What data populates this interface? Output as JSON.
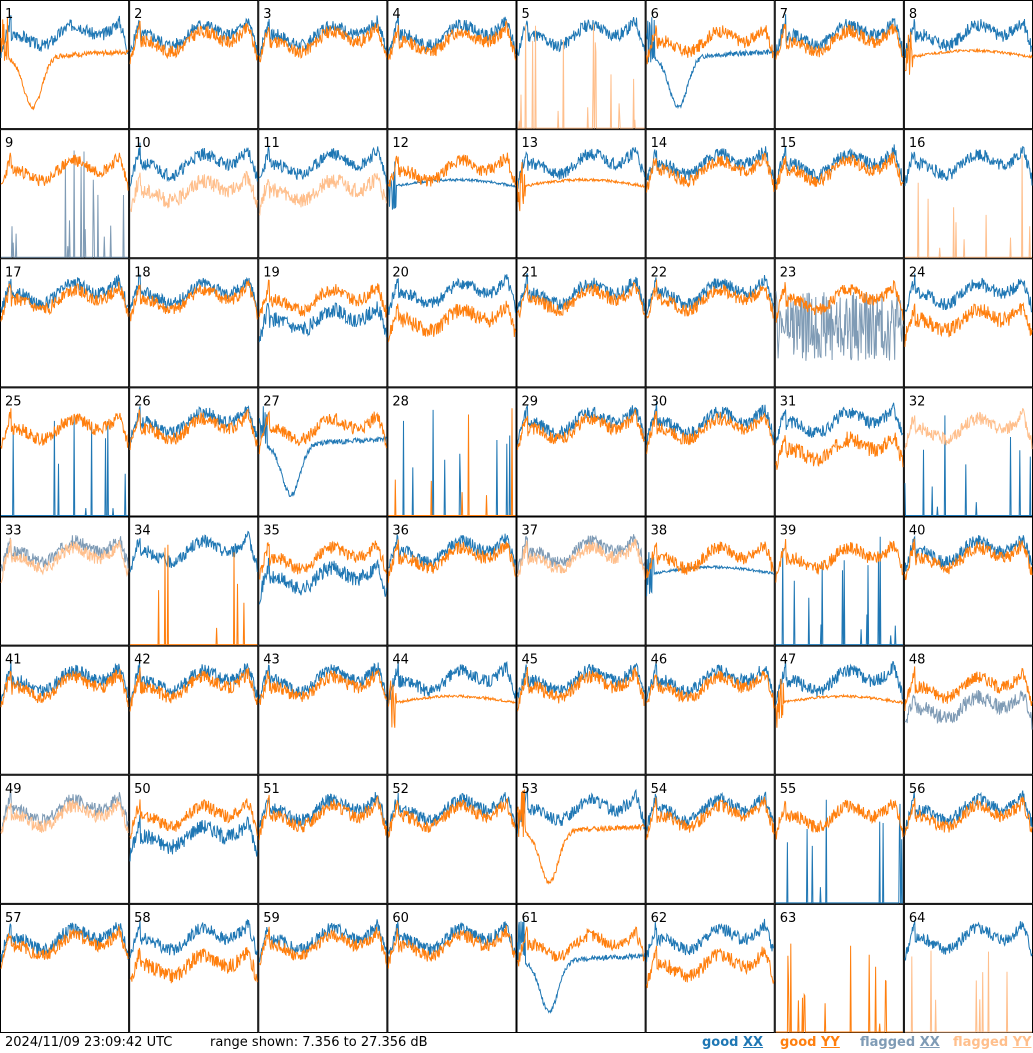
{
  "footer": {
    "timestamp": "2024/11/09 23:09:42 UTC",
    "range_text": "range shown: 7.356 to 27.356 dB",
    "legend": {
      "good_xx": {
        "word": "good",
        "pol": "XX",
        "color": "#1f77b4"
      },
      "good_yy": {
        "word": "good",
        "pol": "YY",
        "color": "#ff7f0e"
      },
      "flagged_xx": {
        "word": "flagged",
        "pol": "XX",
        "color": "#7f9bb5"
      },
      "flagged_yy": {
        "word": "flagged",
        "pol": "YY",
        "color": "#ffbf8c"
      }
    }
  },
  "chart_data": {
    "type": "line",
    "layout": "8x8 small multiples",
    "range_db": [
      7.356,
      27.356
    ],
    "colors": {
      "good_xx": "#1f77b4",
      "good_yy": "#ff7f0e",
      "flagged_xx": "#7f9bb5",
      "flagged_yy": "#ffbf8c"
    },
    "tiles": [
      {
        "label": "1",
        "xx": "good",
        "yy": "good",
        "shape_xx": "normal",
        "shape_yy": "dip"
      },
      {
        "label": "2",
        "xx": "good",
        "yy": "good",
        "shape_xx": "normal",
        "shape_yy": "normal"
      },
      {
        "label": "3",
        "xx": "good",
        "yy": "good",
        "shape_xx": "normal",
        "shape_yy": "normal"
      },
      {
        "label": "4",
        "xx": "good",
        "yy": "good",
        "shape_xx": "normal",
        "shape_yy": "normal"
      },
      {
        "label": "5",
        "xx": "good",
        "yy": "flagged",
        "shape_xx": "normal",
        "shape_yy": "spikes"
      },
      {
        "label": "6",
        "xx": "good",
        "yy": "good",
        "shape_xx": "dip",
        "shape_yy": "normal"
      },
      {
        "label": "7",
        "xx": "good",
        "yy": "good",
        "shape_xx": "normal",
        "shape_yy": "normal"
      },
      {
        "label": "8",
        "xx": "good",
        "yy": "good",
        "shape_xx": "normal",
        "shape_yy": "smooth"
      },
      {
        "label": "9",
        "xx": "flagged",
        "yy": "good",
        "shape_xx": "spikes",
        "shape_yy": "normal"
      },
      {
        "label": "10",
        "xx": "good",
        "yy": "flagged",
        "shape_xx": "normal",
        "shape_yy": "low"
      },
      {
        "label": "11",
        "xx": "good",
        "yy": "flagged",
        "shape_xx": "normal",
        "shape_yy": "low"
      },
      {
        "label": "12",
        "xx": "good",
        "yy": "good",
        "shape_xx": "smooth",
        "shape_yy": "normal"
      },
      {
        "label": "13",
        "xx": "good",
        "yy": "good",
        "shape_xx": "normal",
        "shape_yy": "smooth"
      },
      {
        "label": "14",
        "xx": "good",
        "yy": "good",
        "shape_xx": "normal",
        "shape_yy": "normal"
      },
      {
        "label": "15",
        "xx": "good",
        "yy": "good",
        "shape_xx": "normal",
        "shape_yy": "normal"
      },
      {
        "label": "16",
        "xx": "good",
        "yy": "flagged",
        "shape_xx": "normal",
        "shape_yy": "spikes"
      },
      {
        "label": "17",
        "xx": "good",
        "yy": "good",
        "shape_xx": "normal",
        "shape_yy": "normal"
      },
      {
        "label": "18",
        "xx": "good",
        "yy": "good",
        "shape_xx": "normal",
        "shape_yy": "normal"
      },
      {
        "label": "19",
        "xx": "good",
        "yy": "good",
        "shape_xx": "low",
        "shape_yy": "normal"
      },
      {
        "label": "20",
        "xx": "good",
        "yy": "good",
        "shape_xx": "normal",
        "shape_yy": "low"
      },
      {
        "label": "21",
        "xx": "good",
        "yy": "good",
        "shape_xx": "normal",
        "shape_yy": "normal"
      },
      {
        "label": "22",
        "xx": "good",
        "yy": "good",
        "shape_xx": "normal",
        "shape_yy": "normal"
      },
      {
        "label": "23",
        "xx": "flagged",
        "yy": "good",
        "shape_xx": "noisy",
        "shape_yy": "normal"
      },
      {
        "label": "24",
        "xx": "good",
        "yy": "good",
        "shape_xx": "normal",
        "shape_yy": "low"
      },
      {
        "label": "25",
        "xx": "good",
        "yy": "good",
        "shape_xx": "spikes",
        "shape_yy": "normal"
      },
      {
        "label": "26",
        "xx": "good",
        "yy": "good",
        "shape_xx": "normal",
        "shape_yy": "normal"
      },
      {
        "label": "27",
        "xx": "good",
        "yy": "good",
        "shape_xx": "dip",
        "shape_yy": "normal"
      },
      {
        "label": "28",
        "xx": "good",
        "yy": "good",
        "shape_xx": "spikes",
        "shape_yy": "spikes"
      },
      {
        "label": "29",
        "xx": "good",
        "yy": "good",
        "shape_xx": "normal",
        "shape_yy": "normal"
      },
      {
        "label": "30",
        "xx": "good",
        "yy": "good",
        "shape_xx": "normal",
        "shape_yy": "normal"
      },
      {
        "label": "31",
        "xx": "good",
        "yy": "good",
        "shape_xx": "normal",
        "shape_yy": "low"
      },
      {
        "label": "32",
        "xx": "good",
        "yy": "flagged",
        "shape_xx": "spikes",
        "shape_yy": "normal"
      },
      {
        "label": "33",
        "xx": "flagged",
        "yy": "flagged",
        "shape_xx": "normal",
        "shape_yy": "normal"
      },
      {
        "label": "34",
        "xx": "good",
        "yy": "good",
        "shape_xx": "normal",
        "shape_yy": "spikes"
      },
      {
        "label": "35",
        "xx": "good",
        "yy": "good",
        "shape_xx": "low",
        "shape_yy": "normal"
      },
      {
        "label": "36",
        "xx": "good",
        "yy": "good",
        "shape_xx": "normal",
        "shape_yy": "normal"
      },
      {
        "label": "37",
        "xx": "flagged",
        "yy": "flagged",
        "shape_xx": "normal",
        "shape_yy": "normal"
      },
      {
        "label": "38",
        "xx": "good",
        "yy": "good",
        "shape_xx": "smooth",
        "shape_yy": "normal"
      },
      {
        "label": "39",
        "xx": "good",
        "yy": "good",
        "shape_xx": "spikes",
        "shape_yy": "normal"
      },
      {
        "label": "40",
        "xx": "good",
        "yy": "good",
        "shape_xx": "normal",
        "shape_yy": "normal"
      },
      {
        "label": "41",
        "xx": "good",
        "yy": "good",
        "shape_xx": "normal",
        "shape_yy": "normal"
      },
      {
        "label": "42",
        "xx": "good",
        "yy": "good",
        "shape_xx": "normal",
        "shape_yy": "normal"
      },
      {
        "label": "43",
        "xx": "good",
        "yy": "good",
        "shape_xx": "normal",
        "shape_yy": "normal"
      },
      {
        "label": "44",
        "xx": "good",
        "yy": "good",
        "shape_xx": "normal",
        "shape_yy": "smooth"
      },
      {
        "label": "45",
        "xx": "good",
        "yy": "good",
        "shape_xx": "normal",
        "shape_yy": "normal"
      },
      {
        "label": "46",
        "xx": "good",
        "yy": "good",
        "shape_xx": "normal",
        "shape_yy": "normal"
      },
      {
        "label": "47",
        "xx": "good",
        "yy": "good",
        "shape_xx": "normal",
        "shape_yy": "smooth"
      },
      {
        "label": "48",
        "xx": "flagged",
        "yy": "good",
        "shape_xx": "low",
        "shape_yy": "normal"
      },
      {
        "label": "49",
        "xx": "flagged",
        "yy": "flagged",
        "shape_xx": "normal",
        "shape_yy": "normal"
      },
      {
        "label": "50",
        "xx": "good",
        "yy": "good",
        "shape_xx": "low",
        "shape_yy": "normal"
      },
      {
        "label": "51",
        "xx": "good",
        "yy": "good",
        "shape_xx": "normal",
        "shape_yy": "normal"
      },
      {
        "label": "52",
        "xx": "good",
        "yy": "good",
        "shape_xx": "normal",
        "shape_yy": "normal"
      },
      {
        "label": "53",
        "xx": "good",
        "yy": "good",
        "shape_xx": "normal",
        "shape_yy": "dip"
      },
      {
        "label": "54",
        "xx": "good",
        "yy": "good",
        "shape_xx": "normal",
        "shape_yy": "normal"
      },
      {
        "label": "55",
        "xx": "good",
        "yy": "good",
        "shape_xx": "spikes",
        "shape_yy": "normal"
      },
      {
        "label": "56",
        "xx": "good",
        "yy": "good",
        "shape_xx": "normal",
        "shape_yy": "normal"
      },
      {
        "label": "57",
        "xx": "good",
        "yy": "good",
        "shape_xx": "normal",
        "shape_yy": "normal"
      },
      {
        "label": "58",
        "xx": "good",
        "yy": "good",
        "shape_xx": "normal",
        "shape_yy": "low"
      },
      {
        "label": "59",
        "xx": "good",
        "yy": "good",
        "shape_xx": "normal",
        "shape_yy": "normal"
      },
      {
        "label": "60",
        "xx": "good",
        "yy": "good",
        "shape_xx": "normal",
        "shape_yy": "normal"
      },
      {
        "label": "61",
        "xx": "good",
        "yy": "good",
        "shape_xx": "dip",
        "shape_yy": "normal"
      },
      {
        "label": "62",
        "xx": "good",
        "yy": "good",
        "shape_xx": "normal",
        "shape_yy": "low"
      },
      {
        "label": "63",
        "xx": "good",
        "yy": "good",
        "shape_xx": "none",
        "shape_yy": "spikes"
      },
      {
        "label": "64",
        "xx": "good",
        "yy": "flagged",
        "shape_xx": "normal",
        "shape_yy": "spikes"
      }
    ]
  }
}
